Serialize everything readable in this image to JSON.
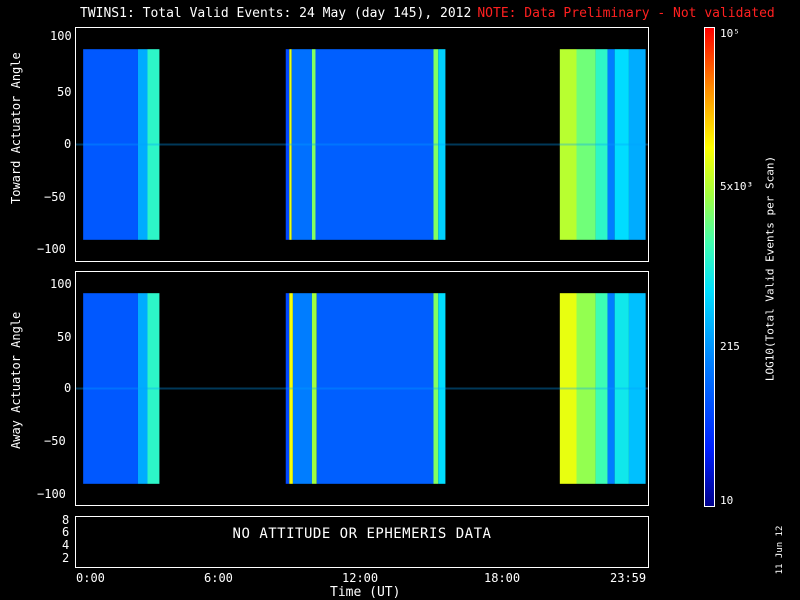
{
  "title": {
    "main": "TWINS1: Total Valid Events: 24 May (day 145), 2012",
    "note": "NOTE: Data Preliminary - Not validated"
  },
  "panels": [
    {
      "ylabel": "Toward Actuator Angle",
      "yticks": [
        "100",
        "50",
        "0",
        "−50",
        "−100"
      ]
    },
    {
      "ylabel": "Away Actuator Angle",
      "yticks": [
        "100",
        "50",
        "0",
        "−50",
        "−100"
      ]
    }
  ],
  "bottom_panel": {
    "text": "NO ATTITUDE OR EPHEMERIS DATA",
    "yticks": [
      "8",
      "6",
      "4",
      "2"
    ]
  },
  "xaxis": {
    "ticks": [
      "0:00",
      "6:00",
      "12:00",
      "18:00",
      "23:59"
    ],
    "title": "Time (UT)"
  },
  "colorbar": {
    "label": "LOG10(Total Valid Events per Scan)",
    "ticks": [
      "10⁵",
      "5x10³",
      "215",
      "10"
    ]
  },
  "date_stamp": "11 Jun 12",
  "chart_data": [
    {
      "type": "heatmap",
      "ylabel": "Toward Actuator Angle",
      "xlabel": "",
      "ylim": [
        -110,
        110
      ],
      "xlim_hours": [
        0,
        24
      ],
      "colorscale": "log",
      "zlim": [
        10,
        100000
      ],
      "data_segments_hours": [
        [
          0.3,
          3.5
        ],
        [
          8.8,
          15.5
        ],
        [
          20.3,
          23.9
        ]
      ],
      "angle_range": [
        -90,
        90
      ],
      "stripes": [
        {
          "start": 0.3,
          "end": 2.6,
          "level": 80
        },
        {
          "start": 2.6,
          "end": 3.0,
          "level": 300
        },
        {
          "start": 3.0,
          "end": 3.5,
          "level": 1200
        },
        {
          "start": 8.8,
          "end": 8.95,
          "level": 60
        },
        {
          "start": 8.95,
          "end": 9.05,
          "level": 8000
        },
        {
          "start": 9.05,
          "end": 9.9,
          "level": 120
        },
        {
          "start": 9.9,
          "end": 10.05,
          "level": 3000
        },
        {
          "start": 10.05,
          "end": 15.0,
          "level": 90
        },
        {
          "start": 15.0,
          "end": 15.2,
          "level": 3000
        },
        {
          "start": 15.2,
          "end": 15.5,
          "level": 500
        },
        {
          "start": 20.3,
          "end": 21.0,
          "level": 5000
        },
        {
          "start": 21.0,
          "end": 21.8,
          "level": 2500
        },
        {
          "start": 21.8,
          "end": 22.3,
          "level": 1200
        },
        {
          "start": 22.3,
          "end": 22.6,
          "level": 150
        },
        {
          "start": 22.6,
          "end": 23.2,
          "level": 600
        },
        {
          "start": 23.2,
          "end": 23.9,
          "level": 300
        }
      ]
    },
    {
      "type": "heatmap",
      "ylabel": "Away Actuator Angle",
      "xlabel": "Time (UT)",
      "ylim": [
        -110,
        110
      ],
      "xlim_hours": [
        0,
        24
      ],
      "colorscale": "log",
      "zlim": [
        10,
        100000
      ],
      "data_segments_hours": [
        [
          0.3,
          3.5
        ],
        [
          8.8,
          15.5
        ],
        [
          20.3,
          23.9
        ]
      ],
      "angle_range": [
        -90,
        90
      ],
      "stripes": [
        {
          "start": 0.3,
          "end": 2.6,
          "level": 80
        },
        {
          "start": 2.6,
          "end": 3.0,
          "level": 300
        },
        {
          "start": 3.0,
          "end": 3.5,
          "level": 1200
        },
        {
          "start": 8.8,
          "end": 8.95,
          "level": 60
        },
        {
          "start": 8.95,
          "end": 9.1,
          "level": 9000
        },
        {
          "start": 9.1,
          "end": 9.9,
          "level": 150
        },
        {
          "start": 9.9,
          "end": 10.1,
          "level": 4000
        },
        {
          "start": 10.1,
          "end": 15.0,
          "level": 90
        },
        {
          "start": 15.0,
          "end": 15.2,
          "level": 3000
        },
        {
          "start": 15.2,
          "end": 15.5,
          "level": 600
        },
        {
          "start": 20.3,
          "end": 21.0,
          "level": 8000
        },
        {
          "start": 21.0,
          "end": 21.8,
          "level": 3500
        },
        {
          "start": 21.8,
          "end": 22.3,
          "level": 1500
        },
        {
          "start": 22.3,
          "end": 22.6,
          "level": 150
        },
        {
          "start": 22.6,
          "end": 23.2,
          "level": 800
        },
        {
          "start": 23.2,
          "end": 23.9,
          "level": 400
        }
      ]
    }
  ]
}
